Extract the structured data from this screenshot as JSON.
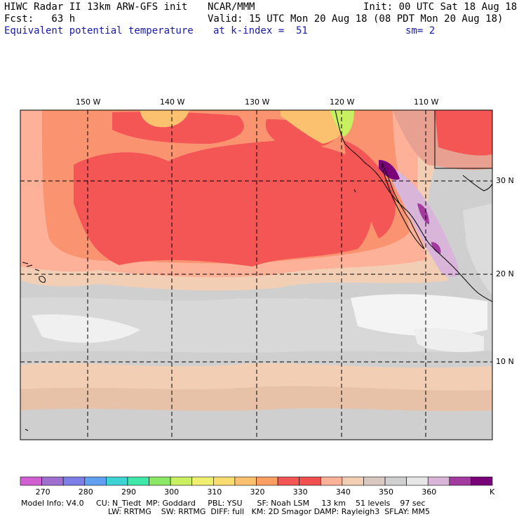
{
  "header": {
    "line1_left": "HIWC Radar II 13km ARW-GFS init",
    "line1_mid": "NCAR/MMM",
    "line1_right": "Init: 00 UTC Sat 18 Aug 18",
    "line2_left": "Fcst:   63 h",
    "line2_right": "Valid: 15 UTC Mon 20 Aug 18 (08 PDT Mon 20 Aug 18)",
    "line3_field": "Equivalent potential temperature",
    "line3_level": "at k-index =  51",
    "line3_smooth": "sm= 2"
  },
  "map": {
    "lon_labels": [
      "150 W",
      "140 W",
      "130 W",
      "120 W",
      "110 W"
    ],
    "lat_labels": [
      "30 N",
      "20 N",
      "10 N"
    ],
    "colors": {
      "deep_red": "#f45555",
      "orange": "#fa9470",
      "salmon": "#fdb198",
      "peach": "#f2cfb4",
      "light_gray": "#cfcfcf",
      "pale_gray": "#e6e6e6",
      "white": "#f8f8f8",
      "yellow_orange": "#fbc16f",
      "purple": "#a23aa0",
      "lavender": "#d9b6d9"
    }
  },
  "colorbar": {
    "swatches": [
      "#d15fd1",
      "#a070d0",
      "#7e7ee8",
      "#5fa0f2",
      "#3fd4d4",
      "#3fe8a8",
      "#8ae865",
      "#c8f060",
      "#f0f070",
      "#fadd70",
      "#fbc16f",
      "#fb9f62",
      "#f45555",
      "#f05050",
      "#fdb198",
      "#f2cfb4",
      "#d8c8c0",
      "#cfcfcf",
      "#e6e6e6",
      "#d9b6d9",
      "#a23aa0",
      "#7a007a"
    ],
    "labels": [
      "270",
      "280",
      "290",
      "300",
      "310",
      "320",
      "330",
      "340",
      "350",
      "360"
    ],
    "unit": "K"
  },
  "footer": {
    "line1": "Model Info: V4.0     CU: N_Tiedt  MP: Goddard     PBL: YSU      SF: Noah LSM     13 km    51 levels    97 sec",
    "line2": "LW: RRTMG    SW: RRTMG  DIFF: full   KM: 2D Smagor DAMP: Rayleigh3  SFLAY: MM5"
  }
}
